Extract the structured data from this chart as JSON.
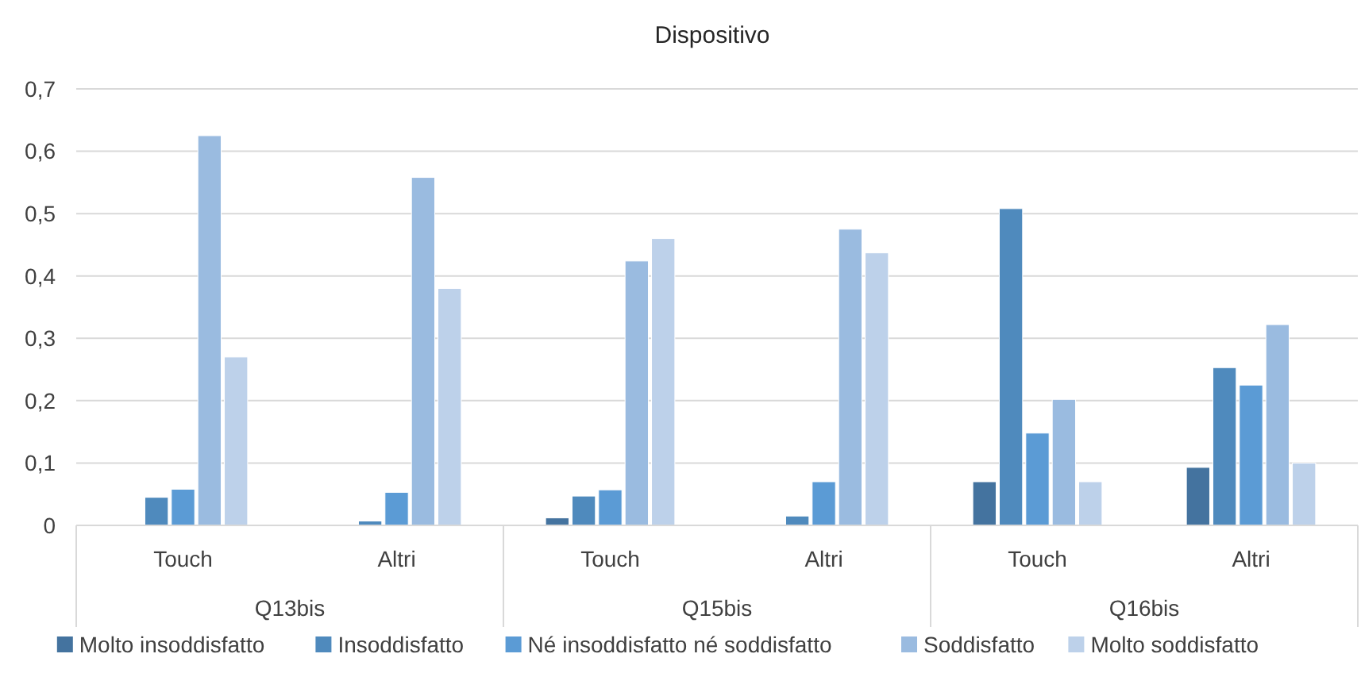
{
  "chart_data": {
    "type": "bar",
    "title": "Dispositivo",
    "categories": [
      "Touch",
      "Altri",
      "Touch",
      "Altri",
      "Touch",
      "Altri"
    ],
    "annotations": [
      "Q13bis",
      "Q15bis",
      "Q16bis"
    ],
    "series": [
      {
        "name": "Molto insoddisfatto",
        "color": "#44739f",
        "values": [
          0,
          0,
          0.012,
          0,
          0.07,
          0.093
        ]
      },
      {
        "name": "Insoddisfatto",
        "color": "#4f8abd",
        "values": [
          0.045,
          0.007,
          0.047,
          0.015,
          0.508,
          0.253
        ]
      },
      {
        "name": "Né insoddisfatto né soddisfatto",
        "color": "#5b9bd5",
        "values": [
          0.058,
          0.053,
          0.057,
          0.07,
          0.148,
          0.225
        ]
      },
      {
        "name": "Soddisfatto",
        "color": "#9abbe0",
        "values": [
          0.625,
          0.558,
          0.424,
          0.475,
          0.202,
          0.322
        ]
      },
      {
        "name": "Molto soddisfatto",
        "color": "#bdd1ea",
        "values": [
          0.27,
          0.38,
          0.46,
          0.437,
          0.07,
          0.1
        ]
      }
    ],
    "ylim": [
      0,
      0.7
    ],
    "yticks": [
      {
        "value": 0,
        "label": "0"
      },
      {
        "value": 0.1,
        "label": "0,1"
      },
      {
        "value": 0.2,
        "label": "0,2"
      },
      {
        "value": 0.3,
        "label": "0,3"
      },
      {
        "value": 0.4,
        "label": "0,4"
      },
      {
        "value": 0.5,
        "label": "0,5"
      },
      {
        "value": 0.6,
        "label": "0,6"
      },
      {
        "value": 0.7,
        "label": "0,7"
      }
    ],
    "grid": "y",
    "legend": "bottom"
  }
}
